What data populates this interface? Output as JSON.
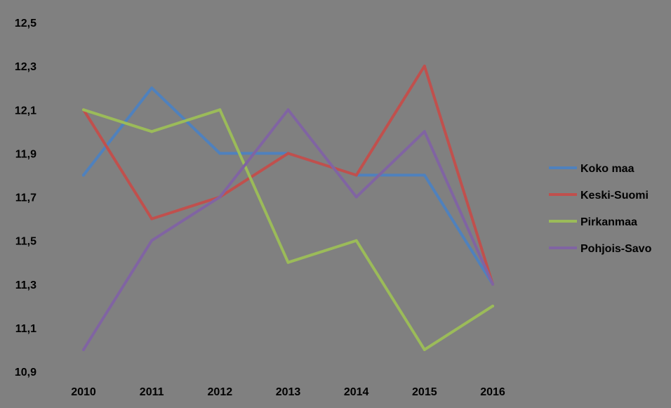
{
  "chart_data": {
    "type": "line",
    "title": "",
    "xlabel": "",
    "ylabel": "",
    "categories": [
      "2010",
      "2011",
      "2012",
      "2013",
      "2014",
      "2015",
      "2016"
    ],
    "y_ticks": [
      "10,9",
      "11,1",
      "11,3",
      "11,5",
      "11,7",
      "11,9",
      "12,1",
      "12,3",
      "12,5"
    ],
    "ylim": [
      10.9,
      12.5
    ],
    "grid": false,
    "legend_position": "right",
    "series": [
      {
        "name": "Koko maa",
        "color": "#4F81BD",
        "values": [
          11.8,
          12.2,
          11.9,
          11.9,
          11.8,
          11.8,
          11.3
        ]
      },
      {
        "name": "Keski-Suomi",
        "color": "#C0504D",
        "values": [
          12.1,
          11.6,
          11.7,
          11.9,
          11.8,
          12.3,
          11.3
        ]
      },
      {
        "name": "Pirkanmaa",
        "color": "#9BBB59",
        "values": [
          12.1,
          12.0,
          12.1,
          11.4,
          11.5,
          11.0,
          11.2
        ]
      },
      {
        "name": "Pohjois-Savo",
        "color": "#8064A2",
        "values": [
          11.0,
          11.5,
          11.7,
          12.1,
          11.7,
          12.0,
          11.3
        ]
      }
    ]
  }
}
